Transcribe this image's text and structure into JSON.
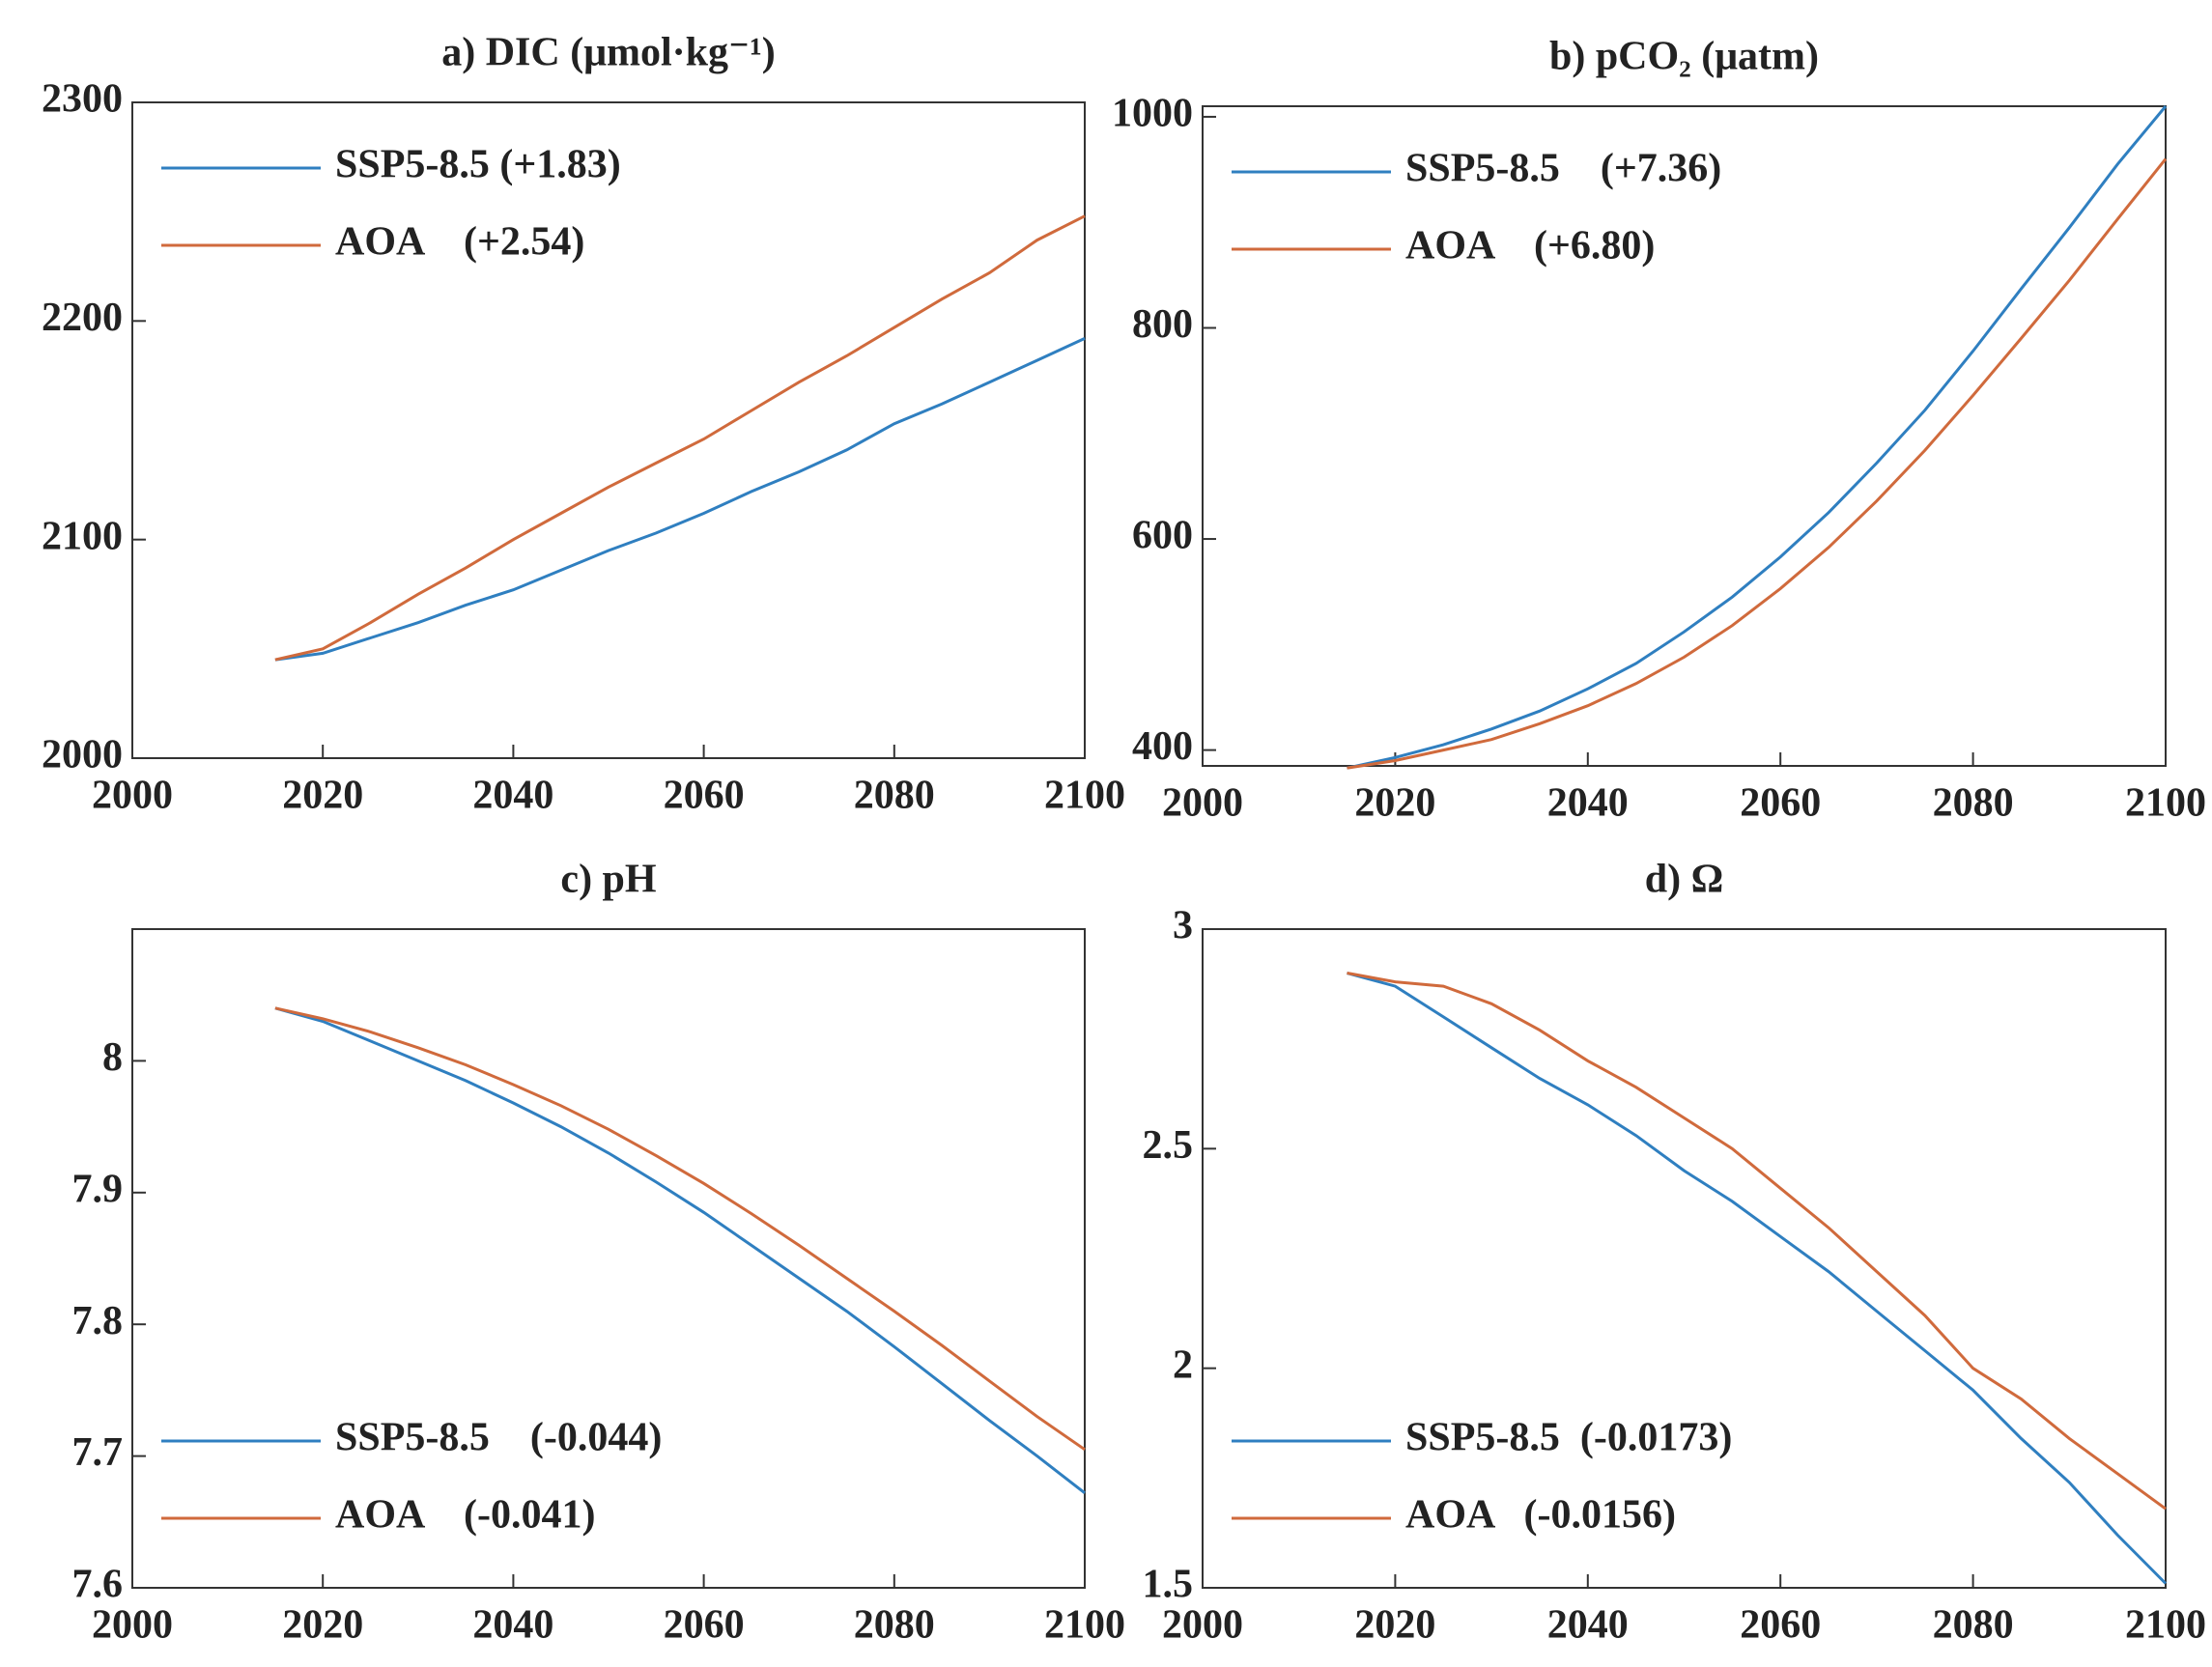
{
  "chart_data": [
    {
      "type": "line",
      "title": "a) DIC (μmol·kg⁻¹)",
      "legend": "upper left",
      "x": [
        2015,
        2020,
        2025,
        2030,
        2035,
        2040,
        2045,
        2050,
        2055,
        2060,
        2065,
        2070,
        2075,
        2080,
        2085,
        2090,
        2095,
        2100
      ],
      "xlim": [
        2000,
        2100
      ],
      "xticks": [
        2000,
        2020,
        2040,
        2060,
        2080,
        2100
      ],
      "ylim": [
        2000,
        2300
      ],
      "yticks": [
        2000,
        2100,
        2200,
        2300
      ],
      "series": [
        {
          "name": "SSP5-8.5 (+1.83)",
          "color": "#2f7fc0",
          "values": [
            2045,
            2048,
            2055,
            2062,
            2070,
            2077,
            2086,
            2095,
            2103,
            2112,
            2122,
            2131,
            2141,
            2153,
            2162,
            2172,
            2182,
            2192
          ]
        },
        {
          "name": "AOA    (+2.54)",
          "color": "#d06a3c",
          "values": [
            2045,
            2050,
            2062,
            2075,
            2087,
            2100,
            2112,
            2124,
            2135,
            2146,
            2159,
            2172,
            2184,
            2197,
            2210,
            2222,
            2237,
            2248
          ]
        }
      ]
    },
    {
      "type": "line",
      "title": "b) pCO₂ (μatm)",
      "legend": "upper left",
      "x": [
        2015,
        2020,
        2025,
        2030,
        2035,
        2040,
        2045,
        2050,
        2055,
        2060,
        2065,
        2070,
        2075,
        2080,
        2085,
        2090,
        2095,
        2100
      ],
      "xlim": [
        2000,
        2100
      ],
      "xticks": [
        2000,
        2020,
        2040,
        2060,
        2080,
        2100
      ],
      "ylim": [
        385,
        1010
      ],
      "yticks": [
        400,
        600,
        800,
        1000
      ],
      "series": [
        {
          "name": "SSP5-8.5    (+7.36)",
          "color": "#2f7fc0",
          "values": [
            383,
            393,
            405,
            420,
            437,
            458,
            482,
            512,
            545,
            583,
            625,
            672,
            722,
            778,
            837,
            895,
            955,
            1010
          ]
        },
        {
          "name": "AOA    (+6.80)",
          "color": "#d06a3c",
          "values": [
            383,
            390,
            400,
            410,
            425,
            442,
            463,
            488,
            518,
            553,
            592,
            636,
            684,
            736,
            790,
            845,
            903,
            960
          ]
        }
      ]
    },
    {
      "type": "line",
      "title": "c) pH",
      "legend": "lower left",
      "x": [
        2015,
        2020,
        2025,
        2030,
        2035,
        2040,
        2045,
        2050,
        2055,
        2060,
        2065,
        2070,
        2075,
        2080,
        2085,
        2090,
        2095,
        2100
      ],
      "xlim": [
        2000,
        2100
      ],
      "xticks": [
        2000,
        2020,
        2040,
        2060,
        2080,
        2100
      ],
      "ylim": [
        7.6,
        8.1
      ],
      "yticks": [
        7.6,
        7.7,
        7.8,
        7.9,
        8
      ],
      "series": [
        {
          "name": "SSP5-8.5    (-0.044)",
          "color": "#2f7fc0",
          "values": [
            8.04,
            8.03,
            8.015,
            8.0,
            7.985,
            7.968,
            7.95,
            7.93,
            7.908,
            7.885,
            7.86,
            7.835,
            7.81,
            7.783,
            7.755,
            7.727,
            7.7,
            7.672
          ]
        },
        {
          "name": "AOA    (-0.041)",
          "color": "#d06a3c",
          "values": [
            8.04,
            8.032,
            8.022,
            8.01,
            7.997,
            7.982,
            7.966,
            7.948,
            7.928,
            7.907,
            7.884,
            7.86,
            7.835,
            7.81,
            7.784,
            7.757,
            7.73,
            7.705
          ]
        }
      ]
    },
    {
      "type": "line",
      "title": "d) Ω",
      "legend": "lower left",
      "x": [
        2015,
        2020,
        2025,
        2030,
        2035,
        2040,
        2045,
        2050,
        2055,
        2060,
        2065,
        2070,
        2075,
        2080,
        2085,
        2090,
        2095,
        2100
      ],
      "xlim": [
        2000,
        2100
      ],
      "xticks": [
        2000,
        2020,
        2040,
        2060,
        2080,
        2100
      ],
      "ylim": [
        1.5,
        3
      ],
      "yticks": [
        1.5,
        2,
        2.5,
        3
      ],
      "series": [
        {
          "name": "SSP5-8.5  (-0.0173)",
          "color": "#2f7fc0",
          "values": [
            2.9,
            2.87,
            2.8,
            2.73,
            2.66,
            2.6,
            2.53,
            2.45,
            2.38,
            2.3,
            2.22,
            2.13,
            2.04,
            1.95,
            1.84,
            1.74,
            1.62,
            1.51
          ]
        },
        {
          "name": "AOA   (-0.0156)",
          "color": "#d06a3c",
          "values": [
            2.9,
            2.88,
            2.87,
            2.83,
            2.77,
            2.7,
            2.64,
            2.57,
            2.5,
            2.41,
            2.32,
            2.22,
            2.12,
            2.0,
            1.93,
            1.84,
            1.76,
            1.68
          ]
        }
      ]
    }
  ]
}
